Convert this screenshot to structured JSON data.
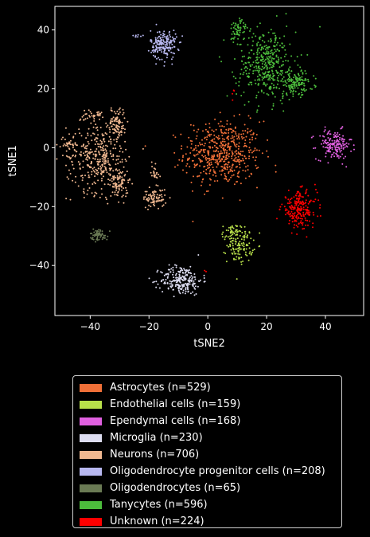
{
  "chart_data": {
    "type": "scatter",
    "xlabel": "tSNE2",
    "ylabel": "tSNE1",
    "xlim": [
      -52,
      53
    ],
    "ylim": [
      -57,
      48
    ],
    "xticks": [
      -40,
      -20,
      0,
      20,
      40
    ],
    "yticks": [
      -40,
      -20,
      0,
      20,
      40
    ],
    "grid": false,
    "legend_position": "below",
    "background": "#000000",
    "series": [
      {
        "name": "Astrocytes (n=529)",
        "color": "#f07038",
        "clusters": [
          {
            "cx": 5,
            "cy": -2,
            "sx": 6.5,
            "sy": 5.5,
            "n": 529
          }
        ]
      },
      {
        "name": "Endothelial cells (n=159)",
        "color": "#b8e04a",
        "clusters": [
          {
            "cx": 11,
            "cy": -33,
            "sx": 2.2,
            "sy": 3,
            "n": 120
          },
          {
            "cx": 8,
            "cy": -29,
            "sx": 1.5,
            "sy": 1.5,
            "n": 39
          }
        ]
      },
      {
        "name": "Ependymal cells (n=168)",
        "color": "#e060e0",
        "clusters": [
          {
            "cx": 43,
            "cy": 1,
            "sx": 3,
            "sy": 2.5,
            "n": 168
          }
        ]
      },
      {
        "name": "Microglia (n=230)",
        "color": "#dcdcf0",
        "clusters": [
          {
            "cx": -9,
            "cy": -45,
            "sx": 3.5,
            "sy": 2.5,
            "n": 230
          }
        ]
      },
      {
        "name": "Neurons (n=706)",
        "color": "#f0b890",
        "clusters": [
          {
            "cx": -38,
            "cy": -3,
            "sx": 5,
            "sy": 6,
            "n": 300
          },
          {
            "cx": -31,
            "cy": 8,
            "sx": 1.5,
            "sy": 3,
            "n": 100
          },
          {
            "cx": -30,
            "cy": -12,
            "sx": 1.5,
            "sy": 3,
            "n": 100
          },
          {
            "cx": -18,
            "cy": -17,
            "sx": 2,
            "sy": 1.5,
            "n": 80
          },
          {
            "cx": -40,
            "cy": 11,
            "sx": 2,
            "sy": 1,
            "n": 30
          },
          {
            "cx": -47,
            "cy": 1,
            "sx": 2,
            "sy": 1,
            "n": 30
          },
          {
            "cx": -18,
            "cy": -8,
            "sx": 0.7,
            "sy": 2,
            "n": 26
          },
          {
            "cx": -36,
            "cy": -4,
            "sx": 1,
            "sy": 3,
            "n": 40
          }
        ]
      },
      {
        "name": "Oligodendrocyte progenitor cells (n=208)",
        "color": "#b8b8f0",
        "clusters": [
          {
            "cx": -15,
            "cy": 35,
            "sx": 2.2,
            "sy": 2.5,
            "n": 200
          },
          {
            "cx": -24,
            "cy": 38,
            "sx": 1,
            "sy": 0.4,
            "n": 8
          }
        ]
      },
      {
        "name": "Oligodendrocytes (n=65)",
        "color": "#6a7a54",
        "clusters": [
          {
            "cx": -37,
            "cy": -29.5,
            "sx": 1.5,
            "sy": 1,
            "n": 65
          }
        ]
      },
      {
        "name": "Tanycytes (n=596)",
        "color": "#4cbc3c",
        "clusters": [
          {
            "cx": 20,
            "cy": 28,
            "sx": 5,
            "sy": 6,
            "n": 400
          },
          {
            "cx": 10,
            "cy": 40,
            "sx": 1.5,
            "sy": 2,
            "n": 60
          },
          {
            "cx": 30,
            "cy": 22,
            "sx": 3,
            "sy": 2,
            "n": 136
          }
        ]
      },
      {
        "name": "Unknown (n=224)",
        "color": "#ff0000",
        "clusters": [
          {
            "cx": 31,
            "cy": -21,
            "sx": 3,
            "sy": 3,
            "n": 218
          },
          {
            "cx": 9,
            "cy": 18,
            "sx": 0.5,
            "sy": 2,
            "n": 4
          },
          {
            "cx": -1,
            "cy": -42,
            "sx": 0.5,
            "sy": 0.5,
            "n": 2
          }
        ]
      }
    ]
  }
}
